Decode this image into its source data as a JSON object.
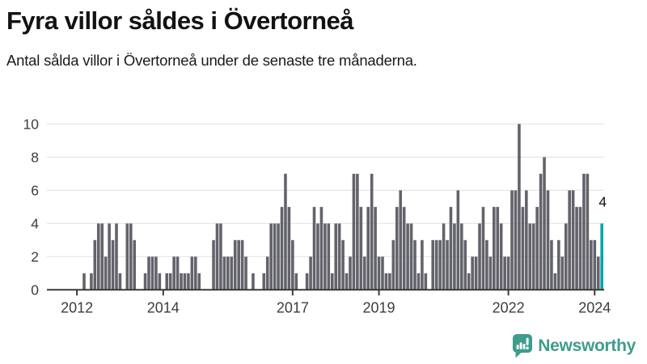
{
  "header": {
    "title": "Fyra villor såldes i Övertorneå",
    "subtitle": "Antal sålda villor i Övertorneå under de senaste tre månaderna."
  },
  "chart_data": {
    "type": "bar",
    "title": "Fyra villor såldes i Övertorneå",
    "subtitle": "Antal sålda villor i Övertorneå under de senaste tre månaderna.",
    "x_start": "2012-01",
    "x_end": "2024-03",
    "x_frequency": "monthly",
    "values": [
      0,
      0,
      1,
      0,
      1,
      3,
      4,
      4,
      2,
      4,
      3,
      4,
      1,
      0,
      4,
      4,
      3,
      0,
      0,
      1,
      2,
      2,
      2,
      1,
      0,
      1,
      1,
      2,
      2,
      1,
      1,
      1,
      2,
      2,
      1,
      0,
      0,
      0,
      3,
      4,
      4,
      2,
      2,
      2,
      3,
      3,
      3,
      2,
      0,
      1,
      0,
      0,
      1,
      2,
      4,
      4,
      4,
      5,
      7,
      5,
      3,
      1,
      0,
      0,
      1,
      2,
      5,
      4,
      5,
      4,
      4,
      1,
      4,
      4,
      3,
      1,
      2,
      7,
      7,
      5,
      2,
      5,
      7,
      5,
      2,
      2,
      1,
      1,
      3,
      5,
      6,
      5,
      4,
      4,
      3,
      1,
      3,
      1,
      0,
      3,
      3,
      3,
      4,
      3,
      5,
      4,
      6,
      4,
      3,
      1,
      2,
      2,
      4,
      5,
      3,
      2,
      5,
      5,
      4,
      2,
      2,
      6,
      6,
      10,
      5,
      6,
      4,
      4,
      5,
      7,
      8,
      6,
      3,
      1,
      3,
      2,
      4,
      6,
      6,
      5,
      5,
      7,
      7,
      3,
      3,
      2,
      4
    ],
    "ylim": [
      0,
      10
    ],
    "yticks": [
      0,
      2,
      4,
      6,
      8,
      10
    ],
    "xticks": [
      {
        "label": "2012",
        "month_index": 0
      },
      {
        "label": "2014",
        "month_index": 24
      },
      {
        "label": "2017",
        "month_index": 60
      },
      {
        "label": "2019",
        "month_index": 84
      },
      {
        "label": "2022",
        "month_index": 120
      },
      {
        "label": "2024",
        "month_index": 144
      }
    ],
    "grid": true,
    "legend_position": "none",
    "highlight": {
      "index": 146,
      "value": 4,
      "label": "4"
    },
    "colors": {
      "bar": "#63636b",
      "highlight": "#00a5a3",
      "gridline": "#e8e8e8",
      "axis": "#3a3a3a",
      "tick_label": "#3d3d3d",
      "annotation": "#121212"
    }
  },
  "footer": {
    "logo_text": "Newsworthy",
    "logo_color": "#3f9c8e",
    "logo_icon": "newsworthy-speech-bubble-chart-icon"
  }
}
